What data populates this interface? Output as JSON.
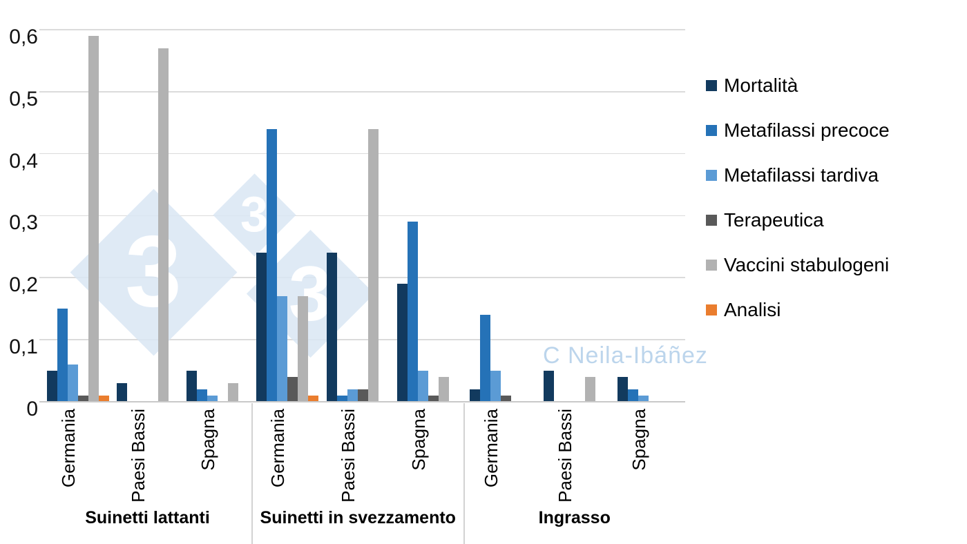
{
  "chart_data": {
    "type": "bar",
    "title": "",
    "xlabel": "",
    "ylabel": "",
    "ylim": [
      0,
      0.6
    ],
    "ytick_step": 0.1,
    "ytick_labels": [
      "0",
      "0,1",
      "0,2",
      "0,3",
      "0,4",
      "0,5",
      "0,6"
    ],
    "decimal_separator": ",",
    "grid": true,
    "legend_position": "right",
    "groups": [
      {
        "label": "Suinetti lattanti",
        "categories": [
          "Germania",
          "Paesi Bassi",
          "Spagna"
        ]
      },
      {
        "label": "Suinetti in svezzamento",
        "categories": [
          "Germania",
          "Paesi Bassi",
          "Spagna"
        ]
      },
      {
        "label": "Ingrasso",
        "categories": [
          "Germania",
          "Paesi Bassi",
          "Spagna"
        ]
      }
    ],
    "series": [
      {
        "name": "Mortalità",
        "color": "#123A5E",
        "values": [
          [
            0.05,
            0.03,
            0.05
          ],
          [
            0.24,
            0.24,
            0.19
          ],
          [
            0.02,
            0.05,
            0.04
          ]
        ]
      },
      {
        "name": "Metafilassi precoce",
        "color": "#2572B7",
        "values": [
          [
            0.15,
            0.0,
            0.02
          ],
          [
            0.44,
            0.01,
            0.29
          ],
          [
            0.14,
            0.0,
            0.02
          ]
        ]
      },
      {
        "name": "Metafilassi tardiva",
        "color": "#5B9BD5",
        "values": [
          [
            0.06,
            0.0,
            0.01
          ],
          [
            0.17,
            0.02,
            0.05
          ],
          [
            0.05,
            0.0,
            0.01
          ]
        ]
      },
      {
        "name": "Terapeutica",
        "color": "#595959",
        "values": [
          [
            0.01,
            0.0,
            0.0
          ],
          [
            0.04,
            0.02,
            0.01
          ],
          [
            0.01,
            0.0,
            0.0
          ]
        ]
      },
      {
        "name": "Vaccini stabulogeni",
        "color": "#B2B2B2",
        "values": [
          [
            0.59,
            0.57,
            0.03
          ],
          [
            0.17,
            0.44,
            0.04
          ],
          [
            0.0,
            0.04,
            0.0
          ]
        ]
      },
      {
        "name": "Analisi",
        "color": "#EA7D2E",
        "values": [
          [
            0.01,
            0.0,
            0.0
          ],
          [
            0.01,
            0.0,
            0.0
          ],
          [
            0.0,
            0.0,
            0.0
          ]
        ]
      }
    ]
  },
  "watermark": {
    "diamond_text": "3",
    "diamond_color": "#D9E6F3",
    "digit_color": "#FFFFFF",
    "credit": "C Neila-Ibáñez",
    "credit_color": "#BCD5EC"
  },
  "style_colors": {
    "gridline": "#DBDBDB",
    "axis": "#C9C9C9",
    "text": "#000000"
  }
}
